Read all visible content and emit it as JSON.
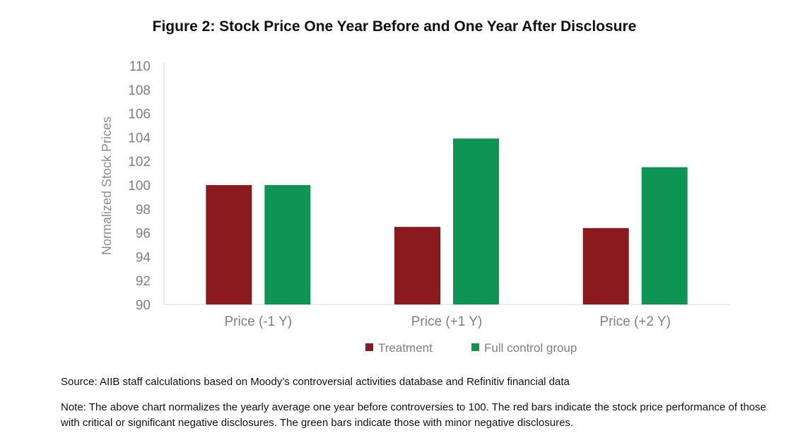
{
  "chart_data": {
    "type": "bar",
    "title": "Figure 2: Stock Price One Year Before and One Year After Disclosure",
    "xlabel": "",
    "ylabel": "Normalized Stock Prices",
    "categories": [
      "Price (-1 Y)",
      "Price (+1 Y)",
      "Price (+2 Y)"
    ],
    "series": [
      {
        "name": "Treatment",
        "values": [
          100,
          96.5,
          96.4
        ],
        "color": "#8b1a1f"
      },
      {
        "name": "Full control group",
        "values": [
          100,
          103.9,
          101.5
        ],
        "color": "#0e9556"
      }
    ],
    "ylim": [
      90,
      110
    ],
    "yticks": [
      "90",
      "92",
      "94",
      "96",
      "98",
      "100",
      "102",
      "104",
      "106",
      "108",
      "110"
    ],
    "grid": false,
    "legend": "bottom"
  },
  "source": "Source: AIIB staff calculations based on Moody’s controversial activities database and Refinitiv financial data",
  "note": "Note: The above chart normalizes the yearly average one year before controversies to 100. The red bars indicate the stock price performance of those with critical or significant negative disclosures. The green bars indicate those with minor negative disclosures."
}
